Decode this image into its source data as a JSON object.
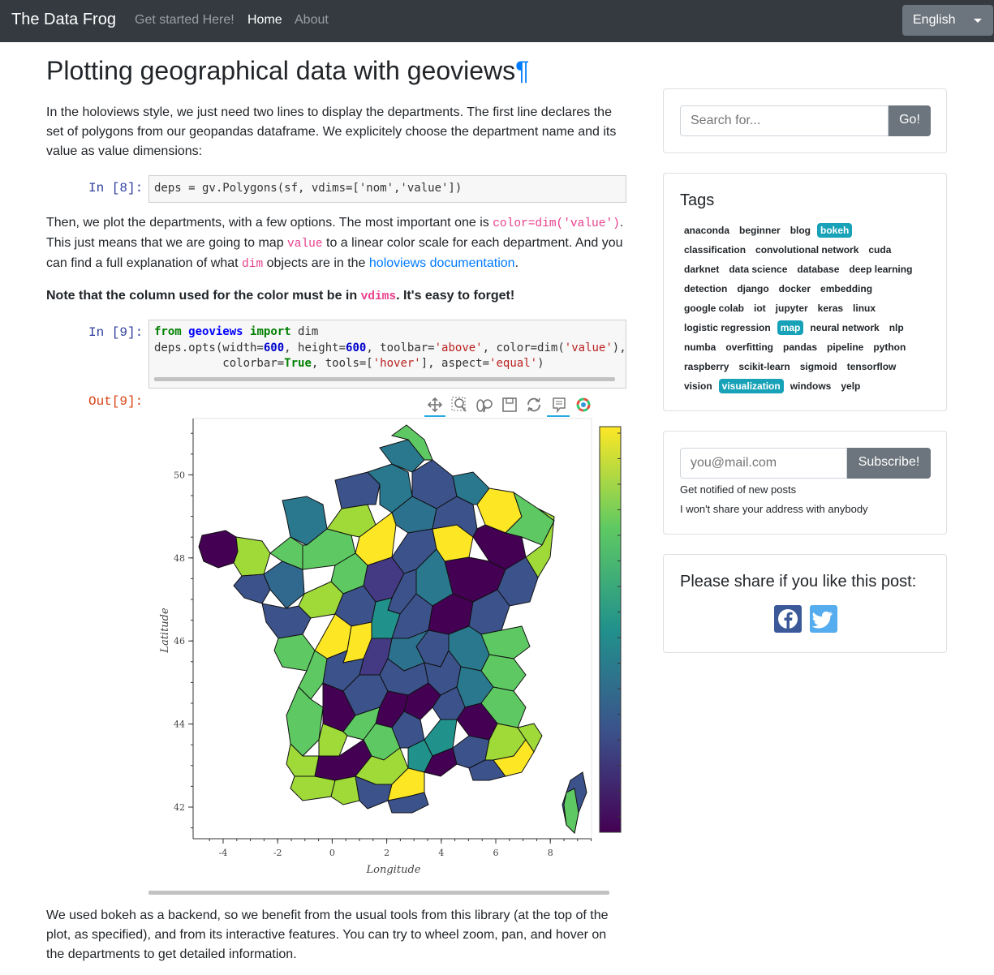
{
  "navbar": {
    "brand": "The Data Frog",
    "links": [
      "Get started Here!",
      "Home",
      "About"
    ],
    "language": "English"
  },
  "article": {
    "title": "Plotting geographical data with geoviews",
    "anchor": "¶",
    "para1": "In the holoviews style, we just need two lines to display the departments. The first line declares the set of polygons from our geopandas dataframe. We explicitely choose the department name and its value as value dimensions:",
    "in8_prompt": "In [8]:",
    "code8": "deps = gv.Polygons(sf, vdims=['nom','value'])",
    "para2_a": "Then, we plot the departments, with a few options. The most important one is ",
    "para2_code1": "color=dim('value')",
    "para2_b": ". This just means that we are going to map ",
    "para2_code2": "value",
    "para2_c": " to a linear color scale for each department. And you can find a full explanation of what ",
    "para2_code3": "dim",
    "para2_d": " objects are in the ",
    "para2_link": "holoviews documentation",
    "para2_e": ".",
    "note_a": "Note that the column used for the color must be in ",
    "note_code": "vdims",
    "note_b": ". It's easy to forget!",
    "in9_prompt": "In [9]:",
    "out9_prompt": "Out[9]:",
    "para3": "We used bokeh as a backend, so we benefit from the usual tools from this library (at the top of the plot, as specified), and from its interactive features. You can try to wheel zoom, pan, and hover on the departments to get detailed information."
  },
  "plot": {
    "xlabel": "Longitude",
    "ylabel": "Latitude",
    "xticks": [
      "-4",
      "-2",
      "0",
      "2",
      "4",
      "6",
      "8"
    ],
    "yticks": [
      "42",
      "44",
      "46",
      "48",
      "50"
    ],
    "toolbar": [
      "pan-icon",
      "box-zoom-icon",
      "wheel-zoom-icon",
      "save-icon",
      "reset-icon",
      "hover-icon",
      "bokeh-logo-icon"
    ],
    "colormap": [
      "#440154",
      "#3b528b",
      "#21918c",
      "#5ec962",
      "#fde725"
    ]
  },
  "sidebar": {
    "search_placeholder": "Search for...",
    "search_button": "Go!",
    "tags_title": "Tags",
    "tags": [
      "anaconda",
      "beginner",
      "blog",
      "bokeh",
      "classification",
      "convolutional network",
      "cuda",
      "darknet",
      "data science",
      "database",
      "deep learning",
      "detection",
      "django",
      "docker",
      "embedding",
      "google colab",
      "iot",
      "jupyter",
      "keras",
      "linux",
      "logistic regression",
      "map",
      "neural network",
      "nlp",
      "numba",
      "overfitting",
      "pandas",
      "pipeline",
      "python",
      "raspberry",
      "scikit-learn",
      "sigmoid",
      "tensorflow",
      "vision",
      "visualization",
      "windows",
      "yelp"
    ],
    "highlighted_tags": [
      "bokeh",
      "map",
      "visualization"
    ],
    "email_placeholder": "you@mail.com",
    "subscribe_button": "Subscribe!",
    "notify_text": "Get notified of new posts",
    "privacy_text": "I won't share your address with anybody",
    "share_title": "Please share if you like this post:"
  }
}
